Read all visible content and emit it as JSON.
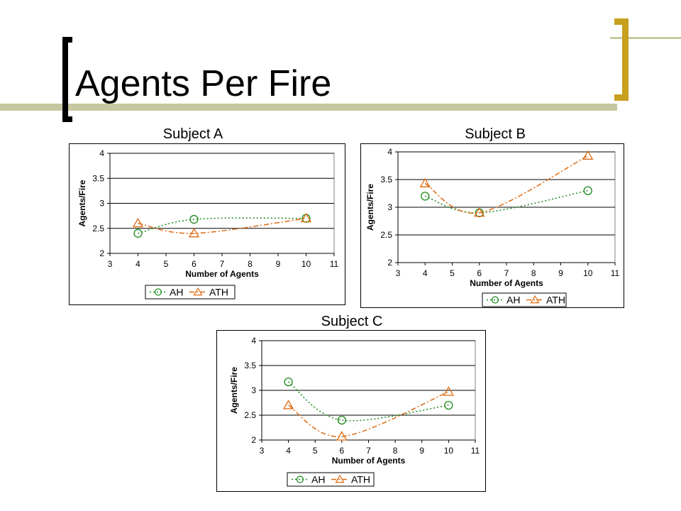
{
  "slide": {
    "title": "Agents Per Fire"
  },
  "chart_data": [
    {
      "type": "line",
      "title": "Subject A",
      "xlabel": "Number of Agents",
      "ylabel": "Agents/Fire",
      "xlim": [
        3,
        11
      ],
      "ylim": [
        2,
        4
      ],
      "xticks": [
        "3",
        "4",
        "5",
        "6",
        "7",
        "8",
        "9",
        "10",
        "11"
      ],
      "yticks": [
        "2",
        "2.5",
        "3",
        "3.5",
        "4"
      ],
      "grid": "horizontal",
      "legend": "bottom",
      "x": [
        4,
        6,
        10
      ],
      "series": [
        {
          "name": "AH",
          "values": [
            2.4,
            2.68,
            2.7
          ],
          "color": "#1a8a1a",
          "marker": "circle"
        },
        {
          "name": "ATH",
          "values": [
            2.6,
            2.4,
            2.7
          ],
          "color": "#e06a10",
          "marker": "triangle"
        }
      ]
    },
    {
      "type": "line",
      "title": "Subject B",
      "xlabel": "Number of Agents",
      "ylabel": "Agents/Fire",
      "xlim": [
        3,
        11
      ],
      "ylim": [
        2,
        4
      ],
      "xticks": [
        "3",
        "4",
        "5",
        "6",
        "7",
        "8",
        "9",
        "10",
        "11"
      ],
      "yticks": [
        "2",
        "2.5",
        "3",
        "3.5",
        "4"
      ],
      "grid": "horizontal",
      "legend": "bottom",
      "x": [
        4,
        6,
        10
      ],
      "series": [
        {
          "name": "AH",
          "values": [
            3.2,
            2.9,
            3.3
          ],
          "color": "#1a8a1a",
          "marker": "circle"
        },
        {
          "name": "ATH",
          "values": [
            3.43,
            2.9,
            3.93
          ],
          "color": "#e06a10",
          "marker": "triangle"
        }
      ]
    },
    {
      "type": "line",
      "title": "Subject C",
      "xlabel": "Number of Agents",
      "ylabel": "Agents/Fire",
      "xlim": [
        3,
        11
      ],
      "ylim": [
        2,
        4
      ],
      "xticks": [
        "3",
        "4",
        "5",
        "6",
        "7",
        "8",
        "9",
        "10",
        "11"
      ],
      "yticks": [
        "2",
        "2.5",
        "3",
        "3.5",
        "4"
      ],
      "grid": "horizontal",
      "legend": "bottom",
      "x": [
        4,
        6,
        10
      ],
      "series": [
        {
          "name": "AH",
          "values": [
            3.17,
            2.4,
            2.7
          ],
          "color": "#1a8a1a",
          "marker": "circle"
        },
        {
          "name": "ATH",
          "values": [
            2.7,
            2.07,
            2.97
          ],
          "color": "#e06a10",
          "marker": "triangle"
        }
      ]
    }
  ]
}
